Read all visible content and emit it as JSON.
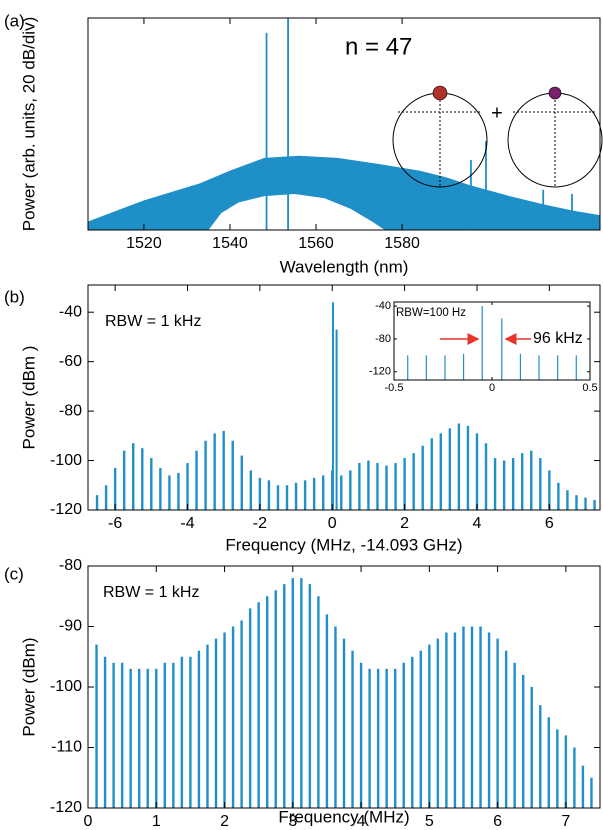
{
  "chart_data": [
    {
      "type": "area",
      "panel_label": "(a)",
      "x_label": "Wavelength (nm)",
      "y_label": "Power (arb. units, 20 dB/div)",
      "annotations": [
        "n = 47",
        "+"
      ],
      "color": "#1f8fc8",
      "xlim": [
        1507,
        1626
      ],
      "ylim": [
        0,
        100
      ],
      "xticks": [
        1520,
        1540,
        1560,
        1580
      ],
      "series": [
        {
          "x": [
            1507,
            1520,
            1533,
            1540,
            1548,
            1556,
            1565,
            1575,
            1584,
            1590,
            1596,
            1605,
            1613,
            1620,
            1626
          ],
          "values": [
            4,
            14,
            22,
            28,
            34,
            35,
            34,
            31,
            28,
            25,
            21,
            16,
            12,
            9,
            7
          ],
          "color": "#1f8fc8"
        },
        {
          "x": [
            1535,
            1538,
            1542,
            1548,
            1555,
            1562,
            1568,
            1573,
            1576
          ],
          "values": [
            0,
            8,
            13,
            16,
            17,
            15,
            10,
            4,
            0
          ],
          "color": "#ffffff"
        }
      ],
      "spikes": {
        "x": [
          1548.5,
          1553.5,
          1596,
          1599.5,
          1612.8,
          1619.5
        ],
        "values": [
          93,
          100,
          33,
          42,
          19,
          17
        ]
      }
    },
    {
      "type": "stem",
      "panel_label": "(b)",
      "x_label": "Frequency (MHz, -14.093 GHz)",
      "y_label": "Power (dBm  )",
      "annotations": [
        "RBW = 1 kHz"
      ],
      "color": "#1f8fc8",
      "xlim": [
        -6.75,
        7.4
      ],
      "ylim": [
        -120,
        -29
      ],
      "xticks": [
        -6,
        -4,
        -2,
        0,
        2,
        4,
        6
      ],
      "yticks": [
        -120,
        -100,
        -80,
        -60,
        -40
      ],
      "x": [
        -6.5,
        -6.25,
        -6,
        -5.75,
        -5.5,
        -5.25,
        -5,
        -4.75,
        -4.5,
        -4.25,
        -4,
        -3.75,
        -3.5,
        -3.25,
        -3,
        -2.75,
        -2.5,
        -2.25,
        -2,
        -1.75,
        -1.5,
        -1.25,
        -1,
        -0.75,
        -0.5,
        -0.25,
        0,
        0.25,
        0.5,
        0.75,
        1,
        1.25,
        1.5,
        1.75,
        2,
        2.25,
        2.5,
        2.75,
        3,
        3.25,
        3.5,
        3.75,
        4,
        4.25,
        4.5,
        4.75,
        5,
        5.25,
        5.5,
        5.75,
        6,
        6.25,
        6.5,
        6.75,
        7,
        7.25
      ],
      "values": [
        -114,
        -110,
        -103,
        -96,
        -93,
        -95,
        -99,
        -103,
        -106,
        -105,
        -101,
        -96,
        -92,
        -89,
        -88,
        -92,
        -98,
        -104,
        -107,
        -108,
        -110,
        -110,
        -109,
        -108,
        -107,
        -106,
        -104,
        -106,
        -104,
        -101,
        -100,
        -101,
        -102,
        -101,
        -99,
        -97,
        -94,
        -91,
        -89,
        -87,
        -85,
        -86,
        -89,
        -93,
        -99,
        -100,
        -99,
        -97,
        -96,
        -99,
        -104,
        -109,
        -112,
        -114,
        -115,
        -116
      ],
      "spikes": {
        "x": [
          0.02,
          0.12
        ],
        "values": [
          -36,
          -47
        ]
      }
    },
    {
      "type": "stem",
      "panel_label": "(c)",
      "x_label": "Frequency (MHz)",
      "y_label": "Power (dBm)",
      "annotations": [
        "RBW = 1 kHz"
      ],
      "color": "#1f8fc8",
      "xlim": [
        0,
        7.5
      ],
      "ylim": [
        -120,
        -80
      ],
      "xticks": [
        0,
        1,
        2,
        3,
        4,
        5,
        6,
        7
      ],
      "yticks": [
        -120,
        -110,
        -100,
        -90,
        -80
      ],
      "x": [
        0.125,
        0.25,
        0.375,
        0.5,
        0.625,
        0.75,
        0.875,
        1,
        1.125,
        1.25,
        1.375,
        1.5,
        1.625,
        1.75,
        1.875,
        2,
        2.125,
        2.25,
        2.375,
        2.5,
        2.625,
        2.75,
        2.875,
        3,
        3.125,
        3.25,
        3.375,
        3.5,
        3.625,
        3.75,
        3.875,
        4,
        4.125,
        4.25,
        4.375,
        4.5,
        4.625,
        4.75,
        4.875,
        5,
        5.125,
        5.25,
        5.375,
        5.5,
        5.625,
        5.75,
        5.875,
        6,
        6.125,
        6.25,
        6.375,
        6.5,
        6.625,
        6.75,
        6.875,
        7,
        7.125,
        7.25,
        7.375
      ],
      "values": [
        -93,
        -95,
        -96,
        -96,
        -97,
        -97,
        -97,
        -97,
        -96,
        -96,
        -95,
        -95,
        -94,
        -93,
        -92,
        -91,
        -90,
        -89,
        -87,
        -86,
        -85,
        -84,
        -83,
        -82,
        -82,
        -83,
        -85,
        -88,
        -90,
        -92,
        -94,
        -96,
        -97,
        -97,
        -97,
        -97,
        -96,
        -95,
        -94,
        -93,
        -92,
        -91,
        -91,
        -90,
        -90,
        -90,
        -91,
        -92,
        -94,
        -96,
        -98,
        -100,
        -103,
        -105,
        -107,
        -108,
        -110,
        -113,
        -115
      ]
    },
    {
      "type": "stem",
      "annotations": [
        "RBW=100 Hz",
        "96 kHz"
      ],
      "color": "#1f8fc8",
      "xlim": [
        -0.5,
        0.5
      ],
      "ylim": [
        -130,
        -35
      ],
      "xticks": [
        -0.5,
        0,
        0.5
      ],
      "yticks": [
        -120,
        -80,
        -40
      ],
      "x": [
        -0.43,
        -0.335,
        -0.24,
        -0.145,
        -0.05,
        0.05,
        0.145,
        0.24,
        0.335,
        0.43
      ],
      "values": [
        -100,
        -100,
        -100,
        -98,
        -40,
        -55,
        -98,
        -100,
        -100,
        -100
      ]
    }
  ]
}
